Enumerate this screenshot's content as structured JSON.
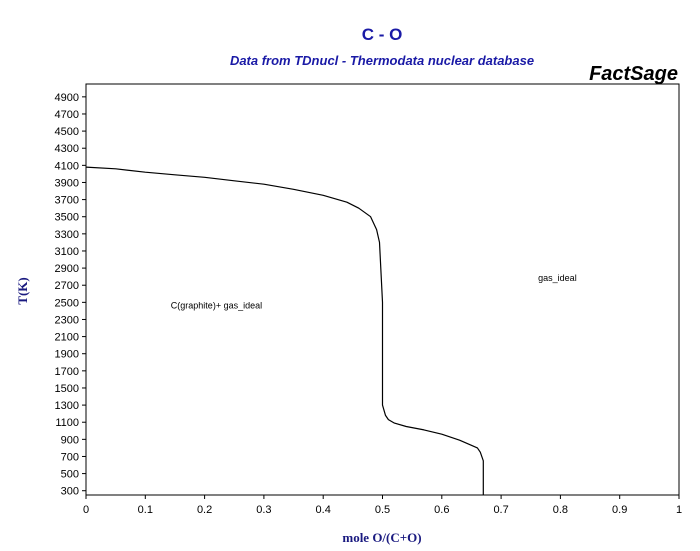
{
  "chart_data": {
    "type": "line",
    "title": "C - O",
    "subtitle": "Data from TDnucl - Thermodata nuclear database",
    "brand": "FactSage",
    "xlabel": "mole O/(C+O)",
    "ylabel": "T(K)",
    "xlim": [
      0,
      1
    ],
    "ylim": [
      250,
      5050
    ],
    "xticks": [
      0,
      0.1,
      0.2,
      0.3,
      0.4,
      0.5,
      0.6,
      0.7,
      0.8,
      0.9,
      1
    ],
    "xtick_labels": [
      "0",
      "0.1",
      "0.2",
      "0.3",
      "0.4",
      "0.5",
      "0.6",
      "0.7",
      "0.8",
      "0.9",
      "1"
    ],
    "yticks": [
      300,
      500,
      700,
      900,
      1100,
      1300,
      1500,
      1700,
      1900,
      2100,
      2300,
      2500,
      2700,
      2900,
      3100,
      3300,
      3500,
      3700,
      3900,
      4100,
      4300,
      4500,
      4700,
      4900
    ],
    "ytick_labels": [
      "300",
      "500",
      "700",
      "900",
      "1100",
      "1300",
      "1500",
      "1700",
      "1900",
      "2100",
      "2300",
      "2500",
      "2700",
      "2900",
      "3100",
      "3300",
      "3500",
      "3700",
      "3900",
      "4100",
      "4300",
      "4500",
      "4700",
      "4900"
    ],
    "grid": false,
    "legend": "none",
    "series": [
      {
        "color": "#000000",
        "x": [
          0.0,
          0.05,
          0.1,
          0.15,
          0.2,
          0.25,
          0.3,
          0.35,
          0.4,
          0.44,
          0.46,
          0.48,
          0.49,
          0.495,
          0.5,
          0.5,
          0.505,
          0.51,
          0.52,
          0.54,
          0.57,
          0.6,
          0.63,
          0.65,
          0.66,
          0.665,
          0.67,
          0.67
        ],
        "y": [
          4080,
          4060,
          4020,
          3990,
          3960,
          3920,
          3880,
          3820,
          3750,
          3670,
          3600,
          3500,
          3350,
          3200,
          2500,
          1300,
          1180,
          1130,
          1090,
          1050,
          1010,
          960,
          890,
          830,
          800,
          750,
          650,
          250
        ]
      }
    ],
    "annotations": [
      {
        "text": "C(graphite)+ gas_ideal",
        "x": 0.22,
        "y": 2430
      },
      {
        "text": "gas_ideal",
        "x": 0.795,
        "y": 2750
      }
    ]
  }
}
